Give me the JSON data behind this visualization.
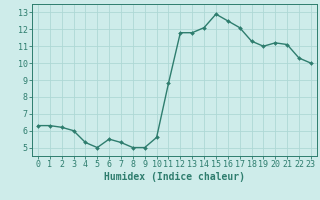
{
  "x": [
    0,
    1,
    2,
    3,
    4,
    5,
    6,
    7,
    8,
    9,
    10,
    11,
    12,
    13,
    14,
    15,
    16,
    17,
    18,
    19,
    20,
    21,
    22,
    23
  ],
  "y": [
    6.3,
    6.3,
    6.2,
    6.0,
    5.3,
    5.0,
    5.5,
    5.3,
    5.0,
    5.0,
    5.6,
    8.8,
    11.8,
    11.8,
    12.1,
    12.9,
    12.5,
    12.1,
    11.3,
    11.0,
    11.2,
    11.1,
    10.3,
    10.0
  ],
  "line_color": "#2e7d6e",
  "marker": "D",
  "marker_size": 2.0,
  "bg_color": "#ceecea",
  "grid_color": "#aed8d5",
  "xlabel": "Humidex (Indice chaleur)",
  "ylim": [
    4.5,
    13.5
  ],
  "xlim": [
    -0.5,
    23.5
  ],
  "yticks": [
    5,
    6,
    7,
    8,
    9,
    10,
    11,
    12,
    13
  ],
  "xticks": [
    0,
    1,
    2,
    3,
    4,
    5,
    6,
    7,
    8,
    9,
    10,
    11,
    12,
    13,
    14,
    15,
    16,
    17,
    18,
    19,
    20,
    21,
    22,
    23
  ],
  "tick_fontsize": 6,
  "label_fontsize": 7
}
